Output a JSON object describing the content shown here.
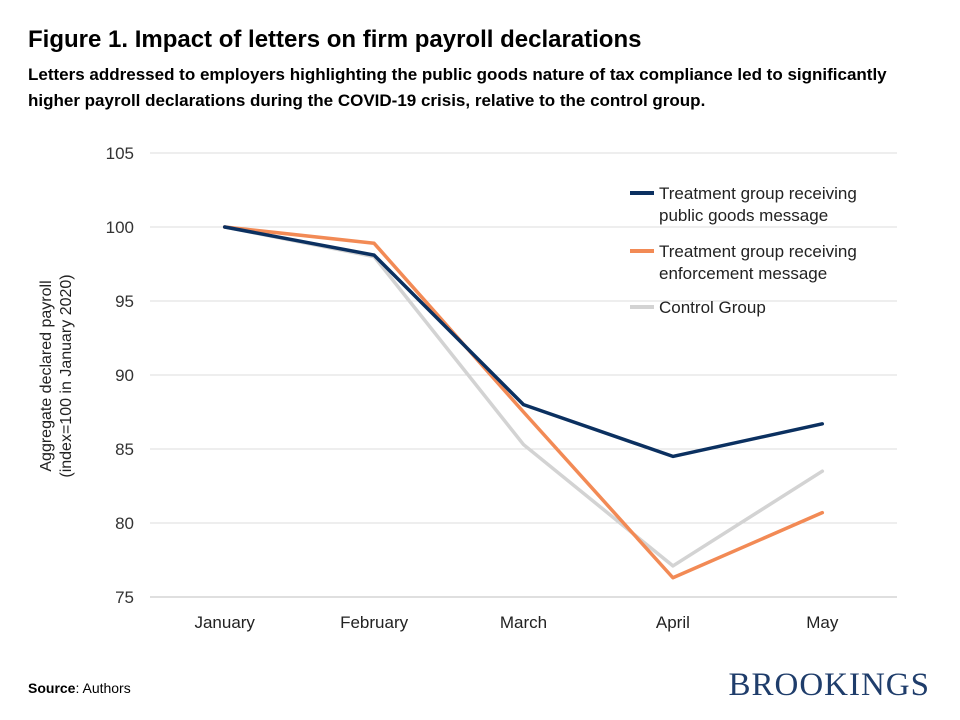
{
  "header": {
    "title": "Figure 1. Impact of letters on firm payroll declarations",
    "subtitle": "Letters addressed to employers highlighting the public goods nature of tax compliance led to significantly higher payroll declarations during the COVID-19 crisis, relative to the control group."
  },
  "chart_data": {
    "type": "line",
    "categories": [
      "January",
      "February",
      "March",
      "April",
      "May"
    ],
    "ylabel_line1": "Aggregate declared payroll",
    "ylabel_line2": "(index=100 in January 2020)",
    "ylim": [
      75,
      105
    ],
    "yticks": [
      75,
      80,
      85,
      90,
      95,
      100,
      105
    ],
    "grid": true,
    "legend_position": "top-right",
    "series": [
      {
        "name_line1": "Treatment group receiving",
        "name_line2": "public goods message",
        "color": "#0b3060",
        "values": [
          100,
          98.1,
          88.0,
          84.5,
          86.7
        ]
      },
      {
        "name_line1": "Treatment group receiving",
        "name_line2": "enforcement message",
        "color": "#f28a55",
        "values": [
          100,
          98.9,
          87.5,
          76.3,
          80.7
        ]
      },
      {
        "name_line1": "Control Group",
        "name_line2": "",
        "color": "#d3d3d3",
        "values": [
          100,
          98.0,
          85.3,
          77.1,
          83.5
        ]
      }
    ]
  },
  "footer": {
    "source_label": "Source",
    "source_text": ": Authors",
    "logo": "BROOKINGS"
  }
}
